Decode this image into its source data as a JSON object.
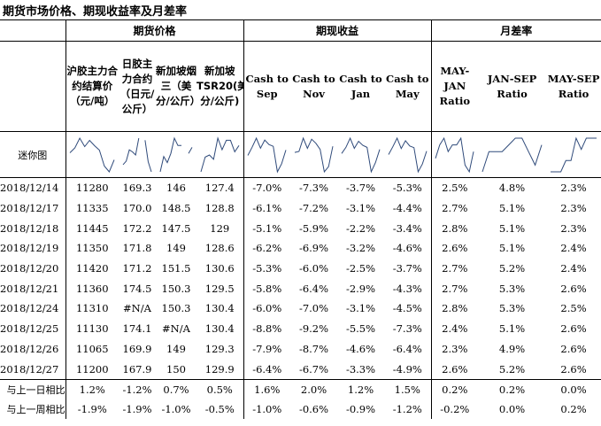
{
  "title": "期货市场价格、期现收益率及月差率",
  "groups": {
    "futures": "期货价格",
    "spot": "期现收益",
    "spread": "月差率"
  },
  "columns": [
    "沪胶主力合约结算价（元/吨）",
    "日胶主力合约（日元/公斤）",
    "新加坡烟三（美分/公斤）",
    "新加坡TSR20(美分/公斤)",
    "Cash to Sep",
    "Cash to Nov",
    "Cash to Jan",
    "Cash to May",
    "MAY-JAN Ratio",
    "JAN-SEP Ratio",
    "MAY-SEP Ratio"
  ],
  "sparkline_label": "迷你图",
  "rows": [
    {
      "date": "2018/12/14",
      "values": [
        "11280",
        "169.3",
        "146",
        "127.4",
        "-7.0%",
        "-7.3%",
        "-3.7%",
        "-5.3%",
        "2.5%",
        "4.8%",
        "2.3%"
      ]
    },
    {
      "date": "2018/12/17",
      "values": [
        "11335",
        "170.0",
        "148.5",
        "128.8",
        "-6.1%",
        "-7.2%",
        "-3.1%",
        "-4.4%",
        "2.7%",
        "5.1%",
        "2.3%"
      ]
    },
    {
      "date": "2018/12/18",
      "values": [
        "11445",
        "172.2",
        "147.5",
        "129",
        "-5.1%",
        "-5.9%",
        "-2.2%",
        "-3.4%",
        "2.8%",
        "5.1%",
        "2.3%"
      ]
    },
    {
      "date": "2018/12/19",
      "values": [
        "11350",
        "171.8",
        "149",
        "128.6",
        "-6.2%",
        "-6.9%",
        "-3.2%",
        "-4.6%",
        "2.6%",
        "5.1%",
        "2.4%"
      ]
    },
    {
      "date": "2018/12/20",
      "values": [
        "11420",
        "171.2",
        "151.5",
        "130.6",
        "-5.3%",
        "-6.0%",
        "-2.5%",
        "-3.7%",
        "2.7%",
        "5.2%",
        "2.4%"
      ]
    },
    {
      "date": "2018/12/21",
      "values": [
        "11360",
        "174.5",
        "150.3",
        "129.5",
        "-5.8%",
        "-6.4%",
        "-2.9%",
        "-4.3%",
        "2.7%",
        "5.3%",
        "2.6%"
      ]
    },
    {
      "date": "2018/12/24",
      "values": [
        "11310",
        "#N/A",
        "150.3",
        "130.4",
        "-6.0%",
        "-7.0%",
        "-3.1%",
        "-4.5%",
        "2.8%",
        "5.3%",
        "2.5%"
      ]
    },
    {
      "date": "2018/12/25",
      "values": [
        "11130",
        "174.1",
        "#N/A",
        "130.4",
        "-8.8%",
        "-9.2%",
        "-5.5%",
        "-7.3%",
        "2.4%",
        "5.1%",
        "2.6%"
      ]
    },
    {
      "date": "2018/12/26",
      "values": [
        "11065",
        "169.9",
        "149",
        "129.3",
        "-7.9%",
        "-8.7%",
        "-4.6%",
        "-6.4%",
        "2.3%",
        "4.9%",
        "2.6%"
      ]
    },
    {
      "date": "2018/12/27",
      "values": [
        "11200",
        "167.9",
        "150",
        "129.9",
        "-6.4%",
        "-6.7%",
        "-3.3%",
        "-4.9%",
        "2.6%",
        "5.2%",
        "2.6%"
      ]
    }
  ],
  "footer": [
    {
      "label": "与上一日相比",
      "values": [
        "1.2%",
        "-1.2%",
        "0.7%",
        "0.5%",
        "1.6%",
        "2.0%",
        "1.2%",
        "1.5%",
        "0.2%",
        "0.2%",
        "0.0%"
      ]
    },
    {
      "label": "与上一周相比",
      "values": [
        "-1.9%",
        "-1.9%",
        "-1.0%",
        "-0.5%",
        "-1.0%",
        "-0.6%",
        "-0.9%",
        "-1.2%",
        "-0.2%",
        "0.0%",
        "0.2%"
      ]
    }
  ],
  "line_color": "#2f4a7a"
}
